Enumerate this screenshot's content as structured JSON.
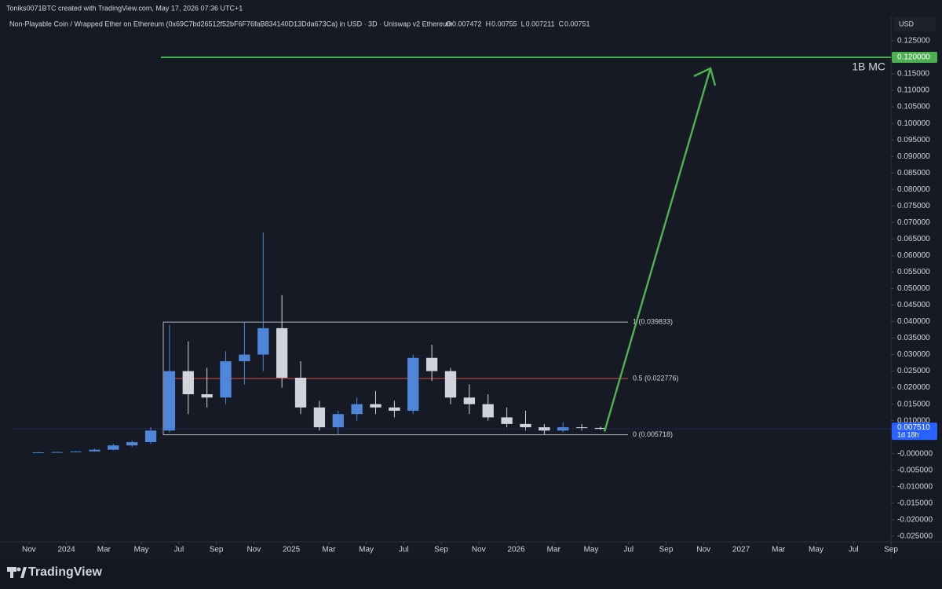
{
  "header": {
    "credit": "Toniks0071BTC created with TradingView.com, May 17, 2026 07:36 UTC+1",
    "symbol": "Non-Playable Coin / Wrapped Ether on Ethereum (0x69C7bd26512f52bF6F76faB834140D13Dda673Ca) in USD · 3D · Uniswap v2 Ethereum",
    "ohlc": [
      {
        "label": "O",
        "value": 0.007472
      },
      {
        "label": "H",
        "value": 0.00755
      },
      {
        "label": "L",
        "value": 0.007211
      },
      {
        "label": "C",
        "value": 0.00751
      }
    ],
    "currency": "USD",
    "brand": "TradingView"
  },
  "chart_data": {
    "type": "candlestick",
    "x": [
      "2023-11",
      "2023-12",
      "2024-01",
      "2024-02",
      "2024-03",
      "2024-04",
      "2024-05",
      "2024-06",
      "2024-07",
      "2024-08",
      "2024-09",
      "2024-10",
      "2024-11",
      "2024-12",
      "2025-01",
      "2025-02",
      "2025-03",
      "2025-04",
      "2025-05",
      "2025-06",
      "2025-07",
      "2025-08",
      "2025-09",
      "2025-10",
      "2025-11",
      "2025-12",
      "2026-01",
      "2026-02",
      "2026-03",
      "2026-04",
      "2026-05"
    ],
    "open": [
      0.0003,
      0.0004,
      0.0005,
      0.0007,
      0.0012,
      0.0025,
      0.0035,
      0.007,
      0.025,
      0.018,
      0.017,
      0.028,
      0.03,
      0.038,
      0.023,
      0.014,
      0.008,
      0.012,
      0.015,
      0.014,
      0.013,
      0.029,
      0.025,
      0.017,
      0.015,
      0.011,
      0.009,
      0.008,
      0.007,
      0.008,
      0.0078
    ],
    "high": [
      0.0005,
      0.0006,
      0.0008,
      0.0015,
      0.003,
      0.004,
      0.008,
      0.039,
      0.034,
      0.026,
      0.031,
      0.04,
      0.067,
      0.048,
      0.028,
      0.016,
      0.013,
      0.017,
      0.019,
      0.016,
      0.03,
      0.033,
      0.026,
      0.021,
      0.018,
      0.014,
      0.013,
      0.009,
      0.0095,
      0.009,
      0.0082
    ],
    "low": [
      0.0002,
      0.0003,
      0.0004,
      0.0006,
      0.001,
      0.002,
      0.003,
      0.0065,
      0.012,
      0.014,
      0.015,
      0.021,
      0.025,
      0.02,
      0.012,
      0.007,
      0.0058,
      0.01,
      0.012,
      0.011,
      0.012,
      0.022,
      0.015,
      0.012,
      0.01,
      0.008,
      0.007,
      0.0058,
      0.0065,
      0.007,
      0.0072
    ],
    "close": [
      0.0004,
      0.0005,
      0.0007,
      0.0012,
      0.0025,
      0.0035,
      0.007,
      0.025,
      0.018,
      0.017,
      0.028,
      0.03,
      0.038,
      0.023,
      0.014,
      0.008,
      0.012,
      0.015,
      0.014,
      0.013,
      0.029,
      0.025,
      0.017,
      0.015,
      0.011,
      0.009,
      0.008,
      0.007,
      0.008,
      0.0078,
      0.00751
    ],
    "up_color": "#4f86d9",
    "down_color": "#d1d4dc",
    "xlim": [
      "2023-10",
      "2027-09"
    ],
    "xticks": [
      {
        "value": "2023-11",
        "label": "Nov"
      },
      {
        "value": "2024-01",
        "label": "2024"
      },
      {
        "value": "2024-03",
        "label": "Mar"
      },
      {
        "value": "2024-05",
        "label": "May"
      },
      {
        "value": "2024-07",
        "label": "Jul"
      },
      {
        "value": "2024-09",
        "label": "Sep"
      },
      {
        "value": "2024-11",
        "label": "Nov"
      },
      {
        "value": "2025-01",
        "label": "2025"
      },
      {
        "value": "2025-03",
        "label": "Mar"
      },
      {
        "value": "2025-05",
        "label": "May"
      },
      {
        "value": "2025-07",
        "label": "Jul"
      },
      {
        "value": "2025-09",
        "label": "Sep"
      },
      {
        "value": "2025-11",
        "label": "Nov"
      },
      {
        "value": "2026-01",
        "label": "2026"
      },
      {
        "value": "2026-03",
        "label": "Mar"
      },
      {
        "value": "2026-05",
        "label": "May"
      },
      {
        "value": "2026-07",
        "label": "Jul"
      },
      {
        "value": "2026-09",
        "label": "Sep"
      },
      {
        "value": "2026-11",
        "label": "Nov"
      },
      {
        "value": "2027-01",
        "label": "2027"
      },
      {
        "value": "2027-03",
        "label": "Mar"
      },
      {
        "value": "2027-05",
        "label": "May"
      },
      {
        "value": "2027-07",
        "label": "Jul"
      },
      {
        "value": "2027-09",
        "label": "Sep"
      }
    ],
    "ylim": [
      -0.0267,
      0.1326
    ],
    "yticks": [
      {
        "value": 0.125,
        "label": "0.125000"
      },
      {
        "value": 0.12,
        "label": "0.120000"
      },
      {
        "value": 0.115,
        "label": "0.115000"
      },
      {
        "value": 0.11,
        "label": "0.110000"
      },
      {
        "value": 0.105,
        "label": "0.105000"
      },
      {
        "value": 0.1,
        "label": "0.100000"
      },
      {
        "value": 0.095,
        "label": "0.095000"
      },
      {
        "value": 0.09,
        "label": "0.090000"
      },
      {
        "value": 0.085,
        "label": "0.085000"
      },
      {
        "value": 0.08,
        "label": "0.080000"
      },
      {
        "value": 0.075,
        "label": "0.075000"
      },
      {
        "value": 0.07,
        "label": "0.070000"
      },
      {
        "value": 0.065,
        "label": "0.065000"
      },
      {
        "value": 0.06,
        "label": "0.060000"
      },
      {
        "value": 0.055,
        "label": "0.055000"
      },
      {
        "value": 0.05,
        "label": "0.050000"
      },
      {
        "value": 0.045,
        "label": "0.045000"
      },
      {
        "value": 0.04,
        "label": "0.040000"
      },
      {
        "value": 0.035,
        "label": "0.035000"
      },
      {
        "value": 0.03,
        "label": "0.030000"
      },
      {
        "value": 0.025,
        "label": "0.025000"
      },
      {
        "value": 0.02,
        "label": "0.020000"
      },
      {
        "value": 0.015,
        "label": "0.015000"
      },
      {
        "value": 0.01,
        "label": "0.010000"
      },
      {
        "value": 0,
        "label": "-0.000000"
      },
      {
        "value": -0.005,
        "label": "-0.005000"
      },
      {
        "value": -0.01,
        "label": "-0.010000"
      },
      {
        "value": -0.015,
        "label": "-0.015000"
      },
      {
        "value": -0.02,
        "label": "-0.020000"
      },
      {
        "value": -0.025,
        "label": "-0.025000"
      }
    ],
    "grid": false,
    "fib_levels": [
      {
        "label": "1 (0.039833)",
        "value": 0.039833,
        "color": "#b2b5be"
      },
      {
        "label": "0.5 (0.022776)",
        "value": 0.022776,
        "color": "#e04b4b"
      },
      {
        "label": "0 (0.005718)",
        "value": 0.005718,
        "color": "#b2b5be"
      }
    ],
    "target": {
      "value": 0.12,
      "label": "0.120000",
      "annotation": "1B MC",
      "color": "#4caf50"
    },
    "last_price": {
      "value": 0.00751,
      "label": "0.007510",
      "countdown": "1d 18h",
      "color": "#2962ff"
    }
  }
}
